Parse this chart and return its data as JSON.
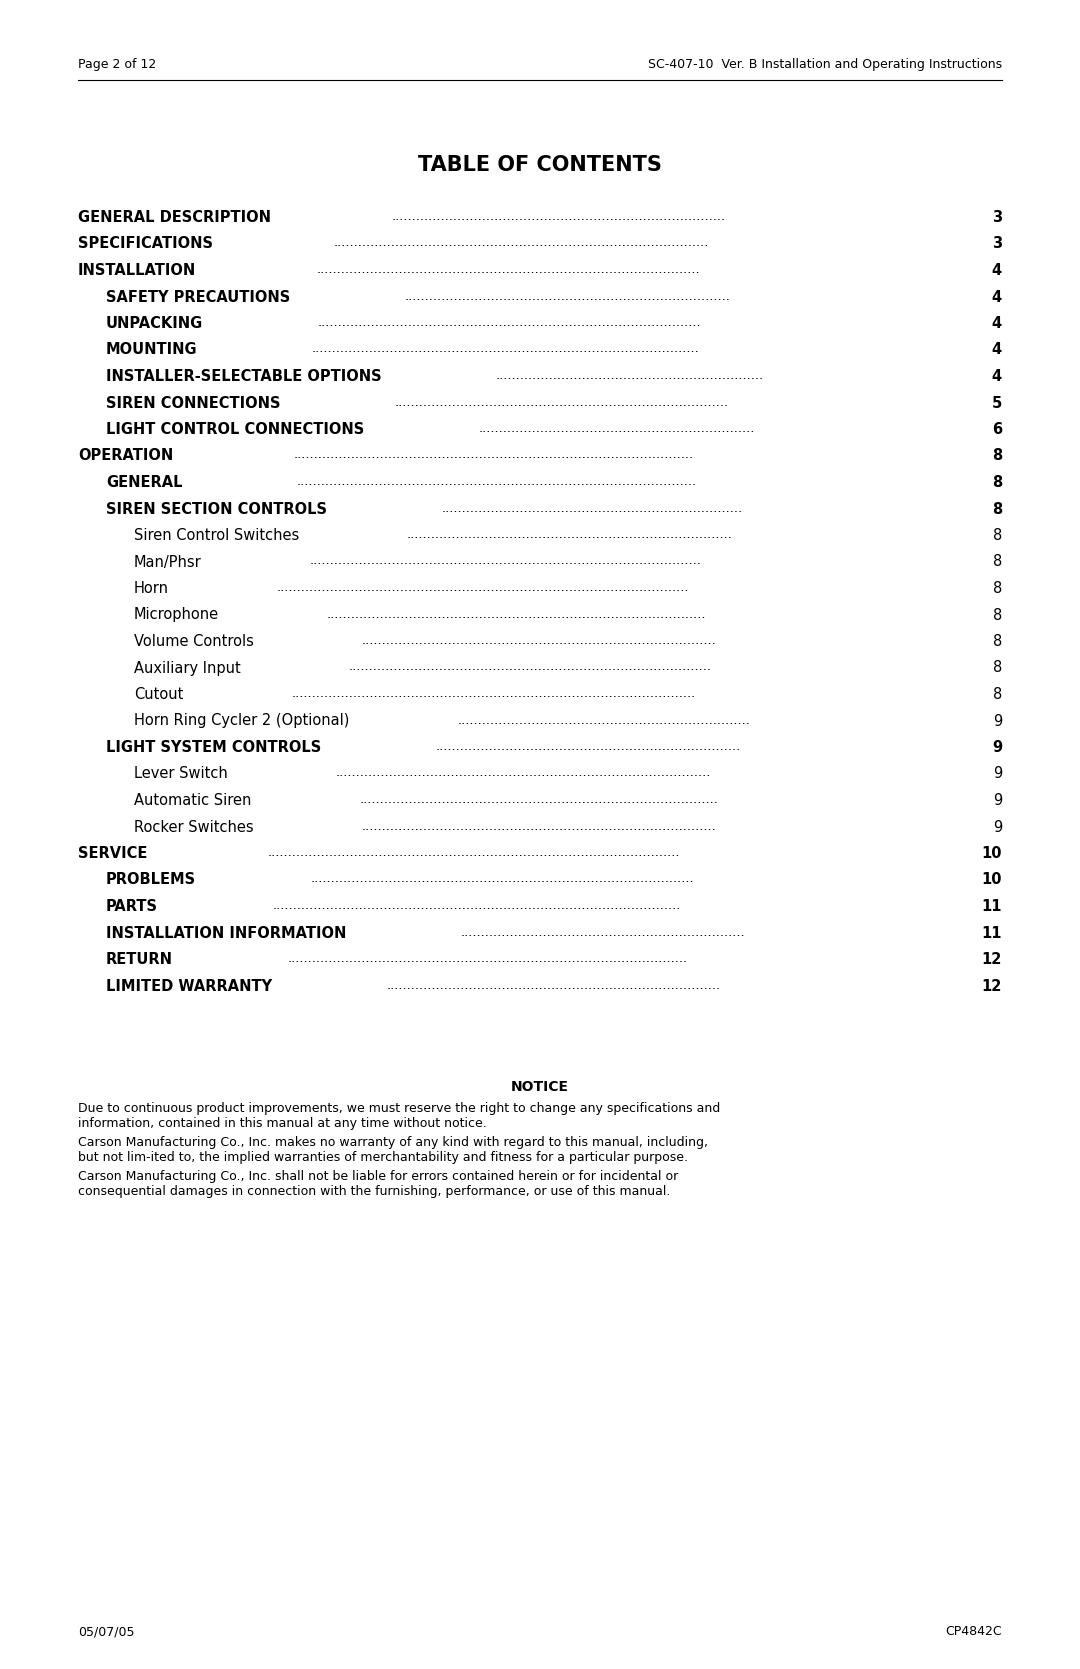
{
  "header_left": "Page 2 of 12",
  "header_right": "SC-407-10  Ver. B Installation and Operating Instructions",
  "title": "TABLE OF CONTENTS",
  "toc_entries": [
    {
      "indent": 0,
      "text": "GENERAL DESCRIPTION",
      "page": "3",
      "bold": true
    },
    {
      "indent": 0,
      "text": "SPECIFICATIONS",
      "page": "3",
      "bold": true
    },
    {
      "indent": 0,
      "text": "INSTALLATION",
      "page": "4",
      "bold": true
    },
    {
      "indent": 1,
      "text": "SAFETY PRECAUTIONS",
      "page": "4",
      "bold": true
    },
    {
      "indent": 1,
      "text": "UNPACKING",
      "page": "4",
      "bold": true
    },
    {
      "indent": 1,
      "text": "MOUNTING",
      "page": "4",
      "bold": true
    },
    {
      "indent": 1,
      "text": "INSTALLER-SELECTABLE OPTIONS",
      "page": "4",
      "bold": true
    },
    {
      "indent": 1,
      "text": "SIREN CONNECTIONS",
      "page": "5",
      "bold": true
    },
    {
      "indent": 1,
      "text": "LIGHT CONTROL CONNECTIONS",
      "page": "6",
      "bold": true
    },
    {
      "indent": 0,
      "text": "OPERATION",
      "page": "8",
      "bold": true
    },
    {
      "indent": 1,
      "text": "GENERAL",
      "page": "8",
      "bold": true
    },
    {
      "indent": 1,
      "text": "SIREN SECTION CONTROLS",
      "page": "8",
      "bold": true
    },
    {
      "indent": 2,
      "text": "Siren Control Switches",
      "page": "8",
      "bold": false
    },
    {
      "indent": 2,
      "text": "Man/Phsr",
      "page": "8",
      "bold": false
    },
    {
      "indent": 2,
      "text": "Horn",
      "page": "8",
      "bold": false
    },
    {
      "indent": 2,
      "text": "Microphone",
      "page": "8",
      "bold": false
    },
    {
      "indent": 2,
      "text": "Volume Controls",
      "page": "8",
      "bold": false
    },
    {
      "indent": 2,
      "text": "Auxiliary Input",
      "page": "8",
      "bold": false
    },
    {
      "indent": 2,
      "text": "Cutout",
      "page": "8",
      "bold": false
    },
    {
      "indent": 2,
      "text": "Horn Ring Cycler 2 (Optional)",
      "page": "9",
      "bold": false
    },
    {
      "indent": 1,
      "text": "LIGHT SYSTEM CONTROLS",
      "page": "9",
      "bold": true
    },
    {
      "indent": 2,
      "text": "Lever Switch",
      "page": "9",
      "bold": false
    },
    {
      "indent": 2,
      "text": "Automatic Siren",
      "page": "9",
      "bold": false
    },
    {
      "indent": 2,
      "text": "Rocker Switches",
      "page": "9",
      "bold": false
    },
    {
      "indent": 0,
      "text": "SERVICE",
      "page": "10",
      "bold": true
    },
    {
      "indent": 1,
      "text": "PROBLEMS",
      "page": "10",
      "bold": true
    },
    {
      "indent": 1,
      "text": "PARTS",
      "page": "11",
      "bold": true
    },
    {
      "indent": 1,
      "text": "INSTALLATION INFORMATION",
      "page": "11",
      "bold": true
    },
    {
      "indent": 1,
      "text": "RETURN",
      "page": "12",
      "bold": true
    },
    {
      "indent": 1,
      "text": "LIMITED WARRANTY",
      "page": "12",
      "bold": true
    }
  ],
  "notice_title": "NOTICE",
  "notice_paragraphs": [
    "Due to continuous product improvements, we must reserve the right to change any specifications and information, contained in this manual at any time without notice.",
    "Carson Manufacturing Co., Inc. makes no warranty of any kind with regard to this manual, including, but not lim-ited to, the implied warranties of merchantability and fitness for a particular purpose.",
    "Carson Manufacturing Co., Inc. shall not be liable for errors contained herein or for incidental or consequential damages in connection with the furnishing, performance, or use of this manual."
  ],
  "footer_left": "05/07/05",
  "footer_right": "CP4842C",
  "bg_color": "#ffffff",
  "text_color": "#000000"
}
